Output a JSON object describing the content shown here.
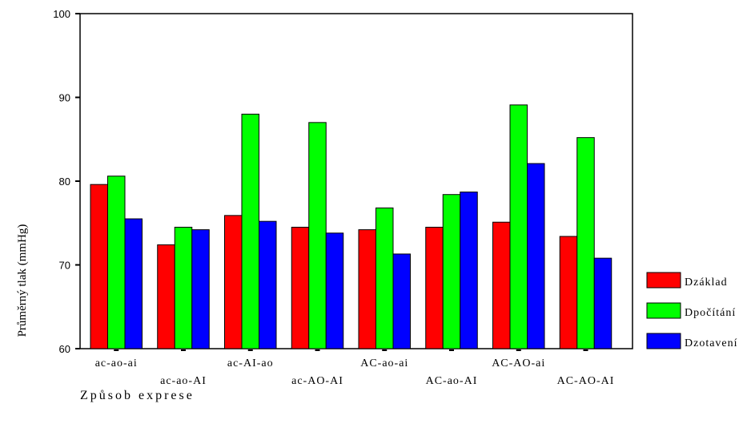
{
  "chart_data": {
    "type": "bar",
    "ylabel": "Průměrný tlak (mmHg)",
    "xlabel": "Způsob exprese",
    "ylim": [
      60,
      100
    ],
    "yticks": [
      60,
      70,
      80,
      90,
      100
    ],
    "categories": [
      "ac-ao-ai",
      "ac-ao-AI",
      "ac-AI-ao",
      "ac-AO-AI",
      "AC-ao-ai",
      "AC-ao-AI",
      "AC-AO-ai",
      "AC-AO-AI"
    ],
    "series": [
      {
        "name": "Dzáklad",
        "color": "#ff0000",
        "values": [
          79.6,
          72.4,
          75.9,
          74.5,
          74.2,
          74.5,
          75.1,
          73.4
        ]
      },
      {
        "name": "Dpočítání",
        "color": "#00ff00",
        "values": [
          80.6,
          74.5,
          88.0,
          87.0,
          76.8,
          78.4,
          89.1,
          85.2
        ]
      },
      {
        "name": "Dzotavení",
        "color": "#0000ff",
        "values": [
          75.5,
          74.2,
          75.2,
          73.8,
          71.3,
          78.7,
          82.1,
          70.8
        ]
      }
    ],
    "legend_position": "right",
    "grid": false
  }
}
